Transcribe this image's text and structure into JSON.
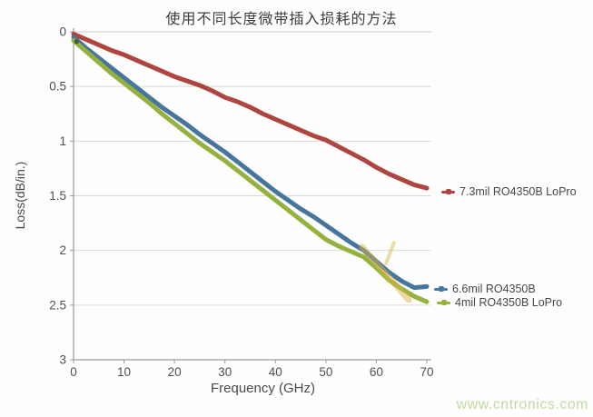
{
  "watermark": "www.cntronics.com",
  "chart_data": {
    "type": "line",
    "title": "使用不同长度微带插入损耗的方法",
    "xlabel": "Frequency (GHz)",
    "ylabel": "Loss(dB/in.)",
    "xlim": [
      0,
      70
    ],
    "ylim": [
      0,
      3
    ],
    "y_axis_inverted_loss_downward": true,
    "grid": "horizontal",
    "legend_position": "right-outside",
    "x_ticks": [
      0,
      10,
      20,
      30,
      40,
      50,
      60,
      70
    ],
    "y_ticks": [
      "0",
      "0.5",
      "1",
      "1.5",
      "2",
      "2.5",
      "3"
    ],
    "x": [
      0,
      2.5,
      5,
      7.5,
      10,
      12.5,
      15,
      17.5,
      20,
      22.5,
      25,
      27.5,
      30,
      32.5,
      35,
      37.5,
      40,
      42.5,
      45,
      47.5,
      50,
      52.5,
      55,
      57.5,
      60,
      62.5,
      65,
      67.5,
      70
    ],
    "series": [
      {
        "name": "7.3mil RO4350B LoPro",
        "color": "#b0443e",
        "values": [
          0.02,
          0.07,
          0.12,
          0.17,
          0.21,
          0.26,
          0.31,
          0.36,
          0.41,
          0.45,
          0.49,
          0.54,
          0.6,
          0.64,
          0.69,
          0.75,
          0.8,
          0.85,
          0.9,
          0.95,
          0.99,
          1.05,
          1.11,
          1.17,
          1.24,
          1.3,
          1.35,
          1.4,
          1.43
        ]
      },
      {
        "name": "6.6mil RO4350B",
        "color": "#46759e",
        "values": [
          0.05,
          0.15,
          0.24,
          0.33,
          0.42,
          0.51,
          0.6,
          0.69,
          0.77,
          0.85,
          0.94,
          1.02,
          1.1,
          1.19,
          1.28,
          1.37,
          1.46,
          1.54,
          1.62,
          1.69,
          1.77,
          1.85,
          1.93,
          2.0,
          2.1,
          2.2,
          2.28,
          2.34,
          2.33
        ]
      },
      {
        "name": "4mil RO4350B LoPro",
        "color": "#96b23e",
        "values": [
          0.08,
          0.18,
          0.28,
          0.38,
          0.47,
          0.56,
          0.65,
          0.75,
          0.84,
          0.93,
          1.02,
          1.1,
          1.18,
          1.27,
          1.36,
          1.45,
          1.54,
          1.63,
          1.72,
          1.81,
          1.9,
          1.96,
          2.01,
          2.06,
          2.16,
          2.27,
          2.35,
          2.42,
          2.47
        ]
      }
    ],
    "annotations": [
      {
        "type": "pen-mark",
        "color": "#d9b542",
        "from_ghz": 57.2,
        "from_db": 1.97,
        "to_ghz": 66.4,
        "to_db": 2.45,
        "width": 7,
        "opacity": 0.5
      },
      {
        "type": "pen-mark",
        "color": "#d9b542",
        "from_ghz": 63.5,
        "from_db": 1.93,
        "to_ghz": 61.9,
        "to_db": 2.12,
        "width": 4,
        "opacity": 0.45
      }
    ]
  }
}
